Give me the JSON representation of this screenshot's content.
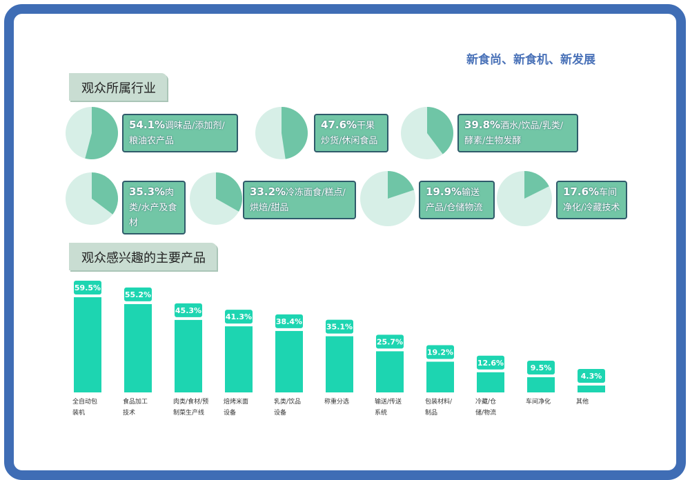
{
  "header": {
    "slogan": "新食尚、新食机、新发展"
  },
  "chart_data": [
    {
      "type": "pie",
      "title": "观众所属行业",
      "categories": [
        "调味品/添加剂/粮油农产品",
        "干果炒货/休闲食品",
        "酒水/饮品/乳类/酵素/生物发酵",
        "肉类/水产及食材",
        "冷冻面食/糕点/烘焙/甜品",
        "输送产品/仓储物流",
        "车间净化/冷藏技术"
      ],
      "values": [
        54.1,
        47.6,
        39.8,
        35.3,
        33.2,
        19.9,
        17.6
      ],
      "value_labels": [
        "54.1%",
        "47.6%",
        "39.8%",
        "35.3%",
        "33.2%",
        "19.9%",
        "17.6%"
      ],
      "color": "#6fc5a6",
      "rest_color": "#d7efe7"
    },
    {
      "type": "bar",
      "title": "观众感兴趣的主要产品",
      "categories": [
        "全自动包装机",
        "食品加工技术",
        "肉类/食材/预制菜生产线",
        "焙烤米面设备",
        "乳类/饮品设备",
        "称重分选",
        "输送/传送系统",
        "包装材料/制品",
        "冷藏/仓储/物流",
        "车间净化",
        "其他"
      ],
      "values": [
        59.5,
        55.2,
        45.3,
        41.3,
        38.4,
        35.1,
        25.7,
        19.2,
        12.6,
        9.5,
        4.3
      ],
      "value_labels": [
        "59.5%",
        "55.2%",
        "45.3%",
        "41.3%",
        "38.4%",
        "35.1%",
        "25.7%",
        "19.2%",
        "12.6%",
        "9.5%",
        "4.3%"
      ],
      "color": "#1dd5b1"
    }
  ]
}
